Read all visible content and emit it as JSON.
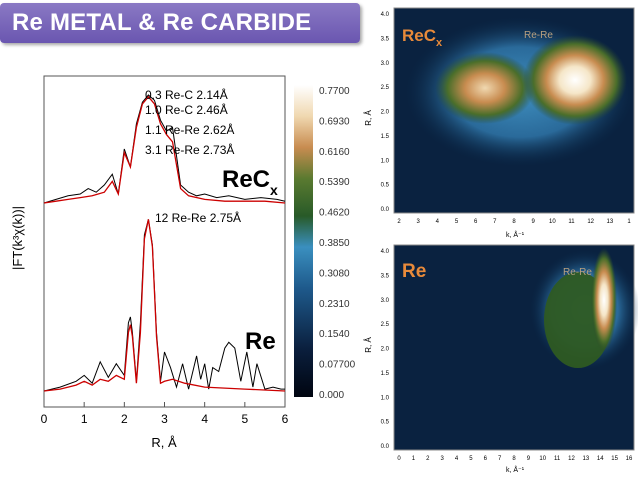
{
  "banner": {
    "title": "Re METAL  & Re  CARBIDE"
  },
  "chart_data": [
    {
      "type": "line",
      "xlabel": "R, Å",
      "ylabel": "|FT(k³χ(k))|",
      "xlim": [
        0,
        6
      ],
      "xticks": [
        "0",
        "1",
        "2",
        "3",
        "4",
        "5",
        "6"
      ],
      "panels": [
        {
          "label": "ReC",
          "label_sub": "x",
          "annotations": [
            "0.3 Re-C 2.14Å",
            "1.0 Re-C 2.46Å",
            "1.1 Re-Re 2.62Å",
            "3.1 Re-Re 2.73Å"
          ],
          "series": [
            {
              "role": "experiment",
              "color": "#000000",
              "x": [
                0,
                0.3,
                0.6,
                0.9,
                1.1,
                1.3,
                1.5,
                1.7,
                1.85,
                2.0,
                2.15,
                2.3,
                2.45,
                2.6,
                2.75,
                2.9,
                3.05,
                3.2,
                3.4,
                3.6,
                3.8,
                4.0,
                4.3,
                4.6,
                5.0,
                5.4,
                5.8,
                6.0
              ],
              "y": [
                0,
                0.02,
                0.04,
                0.05,
                0.08,
                0.06,
                0.1,
                0.16,
                0.05,
                0.3,
                0.2,
                0.44,
                0.56,
                0.6,
                0.57,
                0.46,
                0.4,
                0.42,
                0.1,
                0.06,
                0.04,
                0.05,
                0.03,
                0.04,
                0.02,
                0.03,
                0.02,
                0.01
              ]
            },
            {
              "role": "fit",
              "color": "#cc0000",
              "x": [
                0,
                0.3,
                0.6,
                0.9,
                1.2,
                1.5,
                1.7,
                1.85,
                2.0,
                2.15,
                2.3,
                2.45,
                2.6,
                2.75,
                2.9,
                3.05,
                3.2,
                3.4,
                3.6,
                4.0,
                4.5,
                5.0,
                5.5,
                6.0
              ],
              "y": [
                0,
                0.01,
                0.02,
                0.03,
                0.04,
                0.06,
                0.12,
                0.05,
                0.28,
                0.2,
                0.42,
                0.55,
                0.59,
                0.55,
                0.44,
                0.38,
                0.34,
                0.08,
                0.04,
                0.02,
                0.01,
                0.01,
                0.01,
                0
              ]
            }
          ]
        },
        {
          "label": "Re",
          "annotations": [
            "12 Re-Re 2.75Å"
          ],
          "series": [
            {
              "role": "experiment",
              "color": "#000000",
              "x": [
                0,
                0.4,
                0.8,
                1.0,
                1.2,
                1.4,
                1.6,
                1.8,
                2.0,
                2.1,
                2.15,
                2.2,
                2.3,
                2.4,
                2.5,
                2.6,
                2.7,
                2.8,
                2.9,
                3.0,
                3.15,
                3.3,
                3.45,
                3.6,
                3.8,
                3.9,
                4.0,
                4.1,
                4.2,
                4.35,
                4.5,
                4.6,
                4.75,
                4.9,
                5.05,
                5.2,
                5.3,
                5.5,
                5.7,
                5.9,
                6.0
              ],
              "y": [
                0,
                0.02,
                0.05,
                0.08,
                0.04,
                0.15,
                0.07,
                0.14,
                0.08,
                0.35,
                0.38,
                0.3,
                0.05,
                0.35,
                0.8,
                0.88,
                0.75,
                0.3,
                0.05,
                0.2,
                0.12,
                0.02,
                0.14,
                0.01,
                0.18,
                0.06,
                0.14,
                0.01,
                0.12,
                0.1,
                0.22,
                0.25,
                0.22,
                0.05,
                0.2,
                0.02,
                0.14,
                0.01,
                0.02,
                0.01,
                0.01
              ]
            },
            {
              "role": "fit",
              "color": "#cc0000",
              "x": [
                0,
                0.4,
                0.8,
                1.0,
                1.2,
                1.4,
                1.6,
                1.8,
                2.0,
                2.1,
                2.15,
                2.2,
                2.3,
                2.4,
                2.5,
                2.6,
                2.7,
                2.8,
                2.9,
                3.0,
                3.2,
                3.5,
                4.0,
                5.0,
                6.0
              ],
              "y": [
                0,
                0.01,
                0.03,
                0.05,
                0.03,
                0.06,
                0.05,
                0.08,
                0.06,
                0.3,
                0.34,
                0.28,
                0.04,
                0.3,
                0.78,
                0.88,
                0.74,
                0.28,
                0.04,
                0.05,
                0.06,
                0.04,
                0.02,
                0.01,
                0
              ]
            }
          ]
        }
      ]
    },
    {
      "type": "heatmap",
      "colorbar": [
        "0.7700",
        "0.6930",
        "0.6160",
        "0.5390",
        "0.4620",
        "0.3850",
        "0.3080",
        "0.2310",
        "0.1540",
        "0.07700",
        "0.000"
      ]
    },
    {
      "type": "heatmap",
      "label": "ReC",
      "label_sub": "x",
      "annotation": "Re-Re",
      "xlabel": "k, Å⁻¹",
      "ylabel": "R, Å",
      "xticks": [
        "2",
        "3",
        "4",
        "5",
        "6",
        "7",
        "8",
        "9",
        "10",
        "11",
        "12",
        "13",
        "1"
      ],
      "yticks": [
        "4.0",
        "3.5",
        "3.0",
        "2.5",
        "2.0",
        "1.5",
        "1.0",
        "0.5",
        "0.0"
      ]
    },
    {
      "type": "heatmap",
      "label": "Re",
      "annotation": "Re-Re",
      "xlabel": "k, Å⁻¹",
      "ylabel": "R, Å",
      "xticks": [
        "0",
        "1",
        "2",
        "3",
        "4",
        "5",
        "6",
        "7",
        "8",
        "9",
        "10",
        "11",
        "12",
        "13",
        "14",
        "15",
        "16"
      ],
      "yticks": [
        "4.0",
        "3.5",
        "3.0",
        "2.5",
        "2.0",
        "1.5",
        "1.0",
        "0.5",
        "0.0"
      ]
    }
  ]
}
